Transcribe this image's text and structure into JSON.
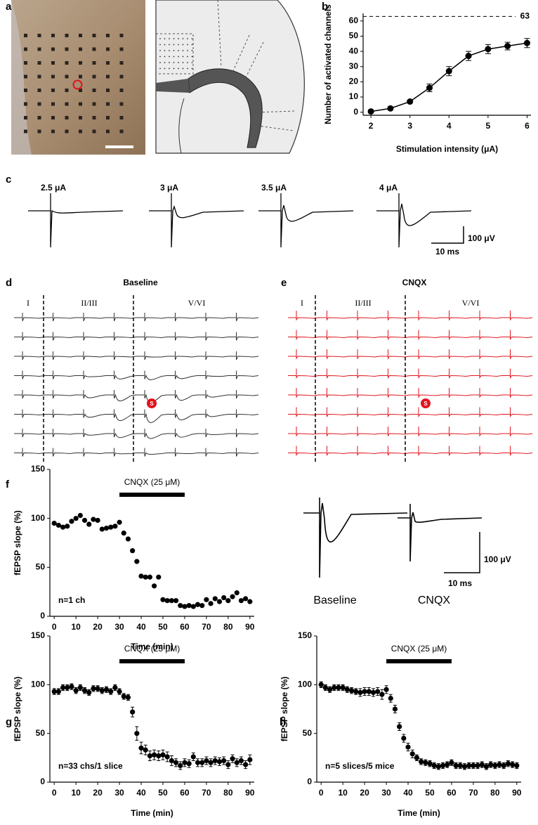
{
  "panel_labels": [
    "a",
    "b",
    "c",
    "d",
    "e",
    "f",
    "g",
    "h"
  ],
  "chart_data": [
    {
      "type": "line",
      "xlabel": "Stimulation intensity (μA)",
      "ylabel": "Number of activated channels",
      "x": [
        2,
        2.5,
        3,
        3.5,
        4,
        4.5,
        5,
        5.5,
        6
      ],
      "values": [
        0.5,
        2.5,
        7,
        16,
        27,
        37,
        41.5,
        43.5,
        45.5
      ],
      "errors": [
        1,
        1,
        1,
        2.5,
        3,
        3,
        3,
        2.5,
        3
      ],
      "color": "#000000",
      "xlim": [
        1.8,
        6.1
      ],
      "ylim": [
        -2,
        65
      ],
      "xticks": [
        2,
        3,
        4,
        5,
        6
      ],
      "yticks": [
        0,
        10,
        20,
        30,
        40,
        50,
        60
      ],
      "ref_line": 63
    },
    {
      "type": "scatter",
      "xlabel": "Time (min)",
      "ylabel": "fEPSP slope (%)",
      "annotation": "n=1 ch",
      "drug_label": "CNQX (25 μM)",
      "drug_bar": [
        30,
        60
      ],
      "x": [
        0,
        2,
        4,
        6,
        8,
        10,
        12,
        14,
        16,
        18,
        20,
        22,
        24,
        26,
        28,
        30,
        32,
        34,
        36,
        38,
        40,
        42,
        44,
        46,
        48,
        50,
        52,
        54,
        56,
        58,
        60,
        62,
        64,
        66,
        68,
        70,
        72,
        74,
        76,
        78,
        80,
        82,
        84,
        86,
        88,
        90
      ],
      "values": [
        95,
        93,
        91,
        92,
        97,
        100,
        103,
        98,
        94,
        99,
        98,
        89,
        90,
        91,
        92,
        96,
        85,
        79,
        67,
        56,
        41,
        40,
        40,
        31,
        40,
        17,
        16,
        16,
        16,
        11,
        10,
        11,
        10,
        12,
        11,
        17,
        13,
        18,
        15,
        19,
        16,
        20,
        24,
        16,
        18,
        15
      ],
      "color": "#000000",
      "xlim": [
        -2,
        92
      ],
      "ylim": [
        0,
        150
      ],
      "xticks": [
        0,
        10,
        20,
        30,
        40,
        50,
        60,
        70,
        80,
        90
      ],
      "yticks": [
        0,
        50,
        100,
        150
      ]
    },
    {
      "type": "scatter",
      "xlabel": "Time (min)",
      "ylabel": "fEPSP slope (%)",
      "annotation": "n=33 chs/1 slice",
      "drug_label": "CNQX (25 μM)",
      "drug_bar": [
        30,
        60
      ],
      "x": [
        0,
        2,
        4,
        6,
        8,
        10,
        12,
        14,
        16,
        18,
        20,
        22,
        24,
        26,
        28,
        30,
        32,
        34,
        36,
        38,
        40,
        42,
        44,
        46,
        48,
        50,
        52,
        54,
        56,
        58,
        60,
        62,
        64,
        66,
        68,
        70,
        72,
        74,
        76,
        78,
        80,
        82,
        84,
        86,
        88,
        90
      ],
      "values": [
        93,
        93,
        97,
        97,
        98,
        94,
        97,
        94,
        92,
        96,
        96,
        94,
        95,
        93,
        97,
        93,
        88,
        87,
        72,
        50,
        35,
        33,
        27,
        28,
        27,
        28,
        26,
        22,
        20,
        17,
        20,
        19,
        26,
        20,
        20,
        22,
        20,
        22,
        21,
        22,
        18,
        24,
        20,
        22,
        18,
        23
      ],
      "errors": [
        3,
        3,
        3,
        3,
        3,
        3,
        3,
        3,
        3,
        3,
        3,
        3,
        3,
        3,
        3,
        3,
        3,
        3,
        5,
        7,
        6,
        5,
        5,
        5,
        5,
        5,
        5,
        5,
        4,
        4,
        4,
        4,
        4,
        4,
        4,
        4,
        4,
        4,
        4,
        4,
        4,
        4,
        4,
        4,
        4,
        5
      ],
      "color": "#000000",
      "xlim": [
        -2,
        92
      ],
      "ylim": [
        0,
        150
      ],
      "xticks": [
        0,
        10,
        20,
        30,
        40,
        50,
        60,
        70,
        80,
        90
      ],
      "yticks": [
        0,
        50,
        100,
        150
      ]
    },
    {
      "type": "scatter",
      "xlabel": "Time (min)",
      "ylabel": "fEPSP slope (%)",
      "annotation": "n=5 slices/5 mice",
      "drug_label": "CNQX (25 μM)",
      "drug_bar": [
        30,
        60
      ],
      "x": [
        0,
        2,
        4,
        6,
        8,
        10,
        12,
        14,
        16,
        18,
        20,
        22,
        24,
        26,
        28,
        30,
        32,
        34,
        36,
        38,
        40,
        42,
        44,
        46,
        48,
        50,
        52,
        54,
        56,
        58,
        60,
        62,
        64,
        66,
        68,
        70,
        72,
        74,
        76,
        78,
        80,
        82,
        84,
        86,
        88,
        90
      ],
      "values": [
        100,
        97,
        95,
        97,
        97,
        97,
        95,
        94,
        93,
        92,
        93,
        93,
        92,
        93,
        90,
        95,
        86,
        75,
        57,
        45,
        36,
        29,
        25,
        21,
        20,
        19,
        17,
        16,
        17,
        18,
        20,
        17,
        17,
        16,
        17,
        17,
        17,
        18,
        16,
        18,
        17,
        18,
        17,
        19,
        18,
        17
      ],
      "errors": [
        3,
        3,
        3,
        3,
        3,
        3,
        3,
        3,
        3,
        4,
        4,
        4,
        4,
        4,
        5,
        4,
        4,
        4,
        4,
        4,
        4,
        4,
        3,
        3,
        3,
        3,
        3,
        3,
        3,
        3,
        3,
        3,
        3,
        3,
        3,
        3,
        3,
        3,
        3,
        3,
        3,
        3,
        3,
        3,
        3,
        3
      ],
      "color": "#000000",
      "xlim": [
        -2,
        92
      ],
      "ylim": [
        0,
        150
      ],
      "xticks": [
        0,
        10,
        20,
        30,
        40,
        50,
        60,
        70,
        80,
        90
      ],
      "yticks": [
        0,
        50,
        100,
        150
      ]
    }
  ],
  "panel_c": {
    "labels": [
      "2.5 μA",
      "3 μA",
      "3.5 μA",
      "4 μA"
    ],
    "scale_y": "100 μV",
    "scale_x": "10 ms"
  },
  "panel_d": {
    "title": "Baseline",
    "layers": [
      "I",
      "II/III",
      "V/VI"
    ],
    "stim": "S"
  },
  "panel_e": {
    "title": "CNQX",
    "layers": [
      "I",
      "II/III",
      "V/VI"
    ],
    "stim": "S"
  },
  "panel_f_traces": {
    "labels": [
      "Baseline",
      "CNQX"
    ],
    "scale_y": "100 μV",
    "scale_x": "10 ms"
  }
}
